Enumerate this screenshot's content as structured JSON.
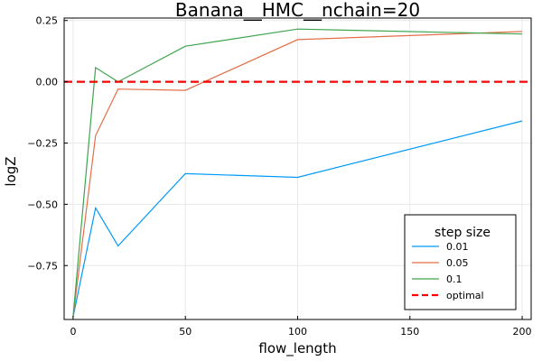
{
  "chart_data": {
    "type": "line",
    "title": "Banana__HMC__nchain=20",
    "xlabel": "flow_length",
    "ylabel": "logZ",
    "xlim": [
      -4,
      204
    ],
    "ylim": [
      -0.97,
      0.26
    ],
    "xticks": [
      0,
      50,
      100,
      150,
      200
    ],
    "xtick_labels": [
      "0",
      "50",
      "100",
      "150",
      "200"
    ],
    "yticks": [
      0.25,
      0.0,
      -0.25,
      -0.5,
      -0.75
    ],
    "ytick_labels": [
      "0.25",
      "0.00",
      "−0.25",
      "−0.50",
      "−0.75"
    ],
    "grid": true,
    "legend": {
      "title": "step size",
      "position": "bottom-right"
    },
    "x": [
      0,
      10,
      20,
      50,
      100,
      200
    ],
    "series": [
      {
        "name": "0.01",
        "color": "#009AFA",
        "style": "solid",
        "values": [
          -0.96,
          -0.515,
          -0.67,
          -0.375,
          -0.39,
          -0.16
        ]
      },
      {
        "name": "0.05",
        "color": "#E36F47",
        "style": "solid",
        "values": [
          -0.96,
          -0.22,
          -0.03,
          -0.035,
          0.172,
          0.205
        ]
      },
      {
        "name": "0.1",
        "color": "#3EA44E",
        "style": "solid",
        "values": [
          -0.96,
          0.058,
          0.0,
          0.145,
          0.215,
          0.195
        ]
      }
    ],
    "reference_line": {
      "name": "optimal",
      "y": 0.0,
      "color": "#FF0000",
      "style": "dashed"
    }
  }
}
